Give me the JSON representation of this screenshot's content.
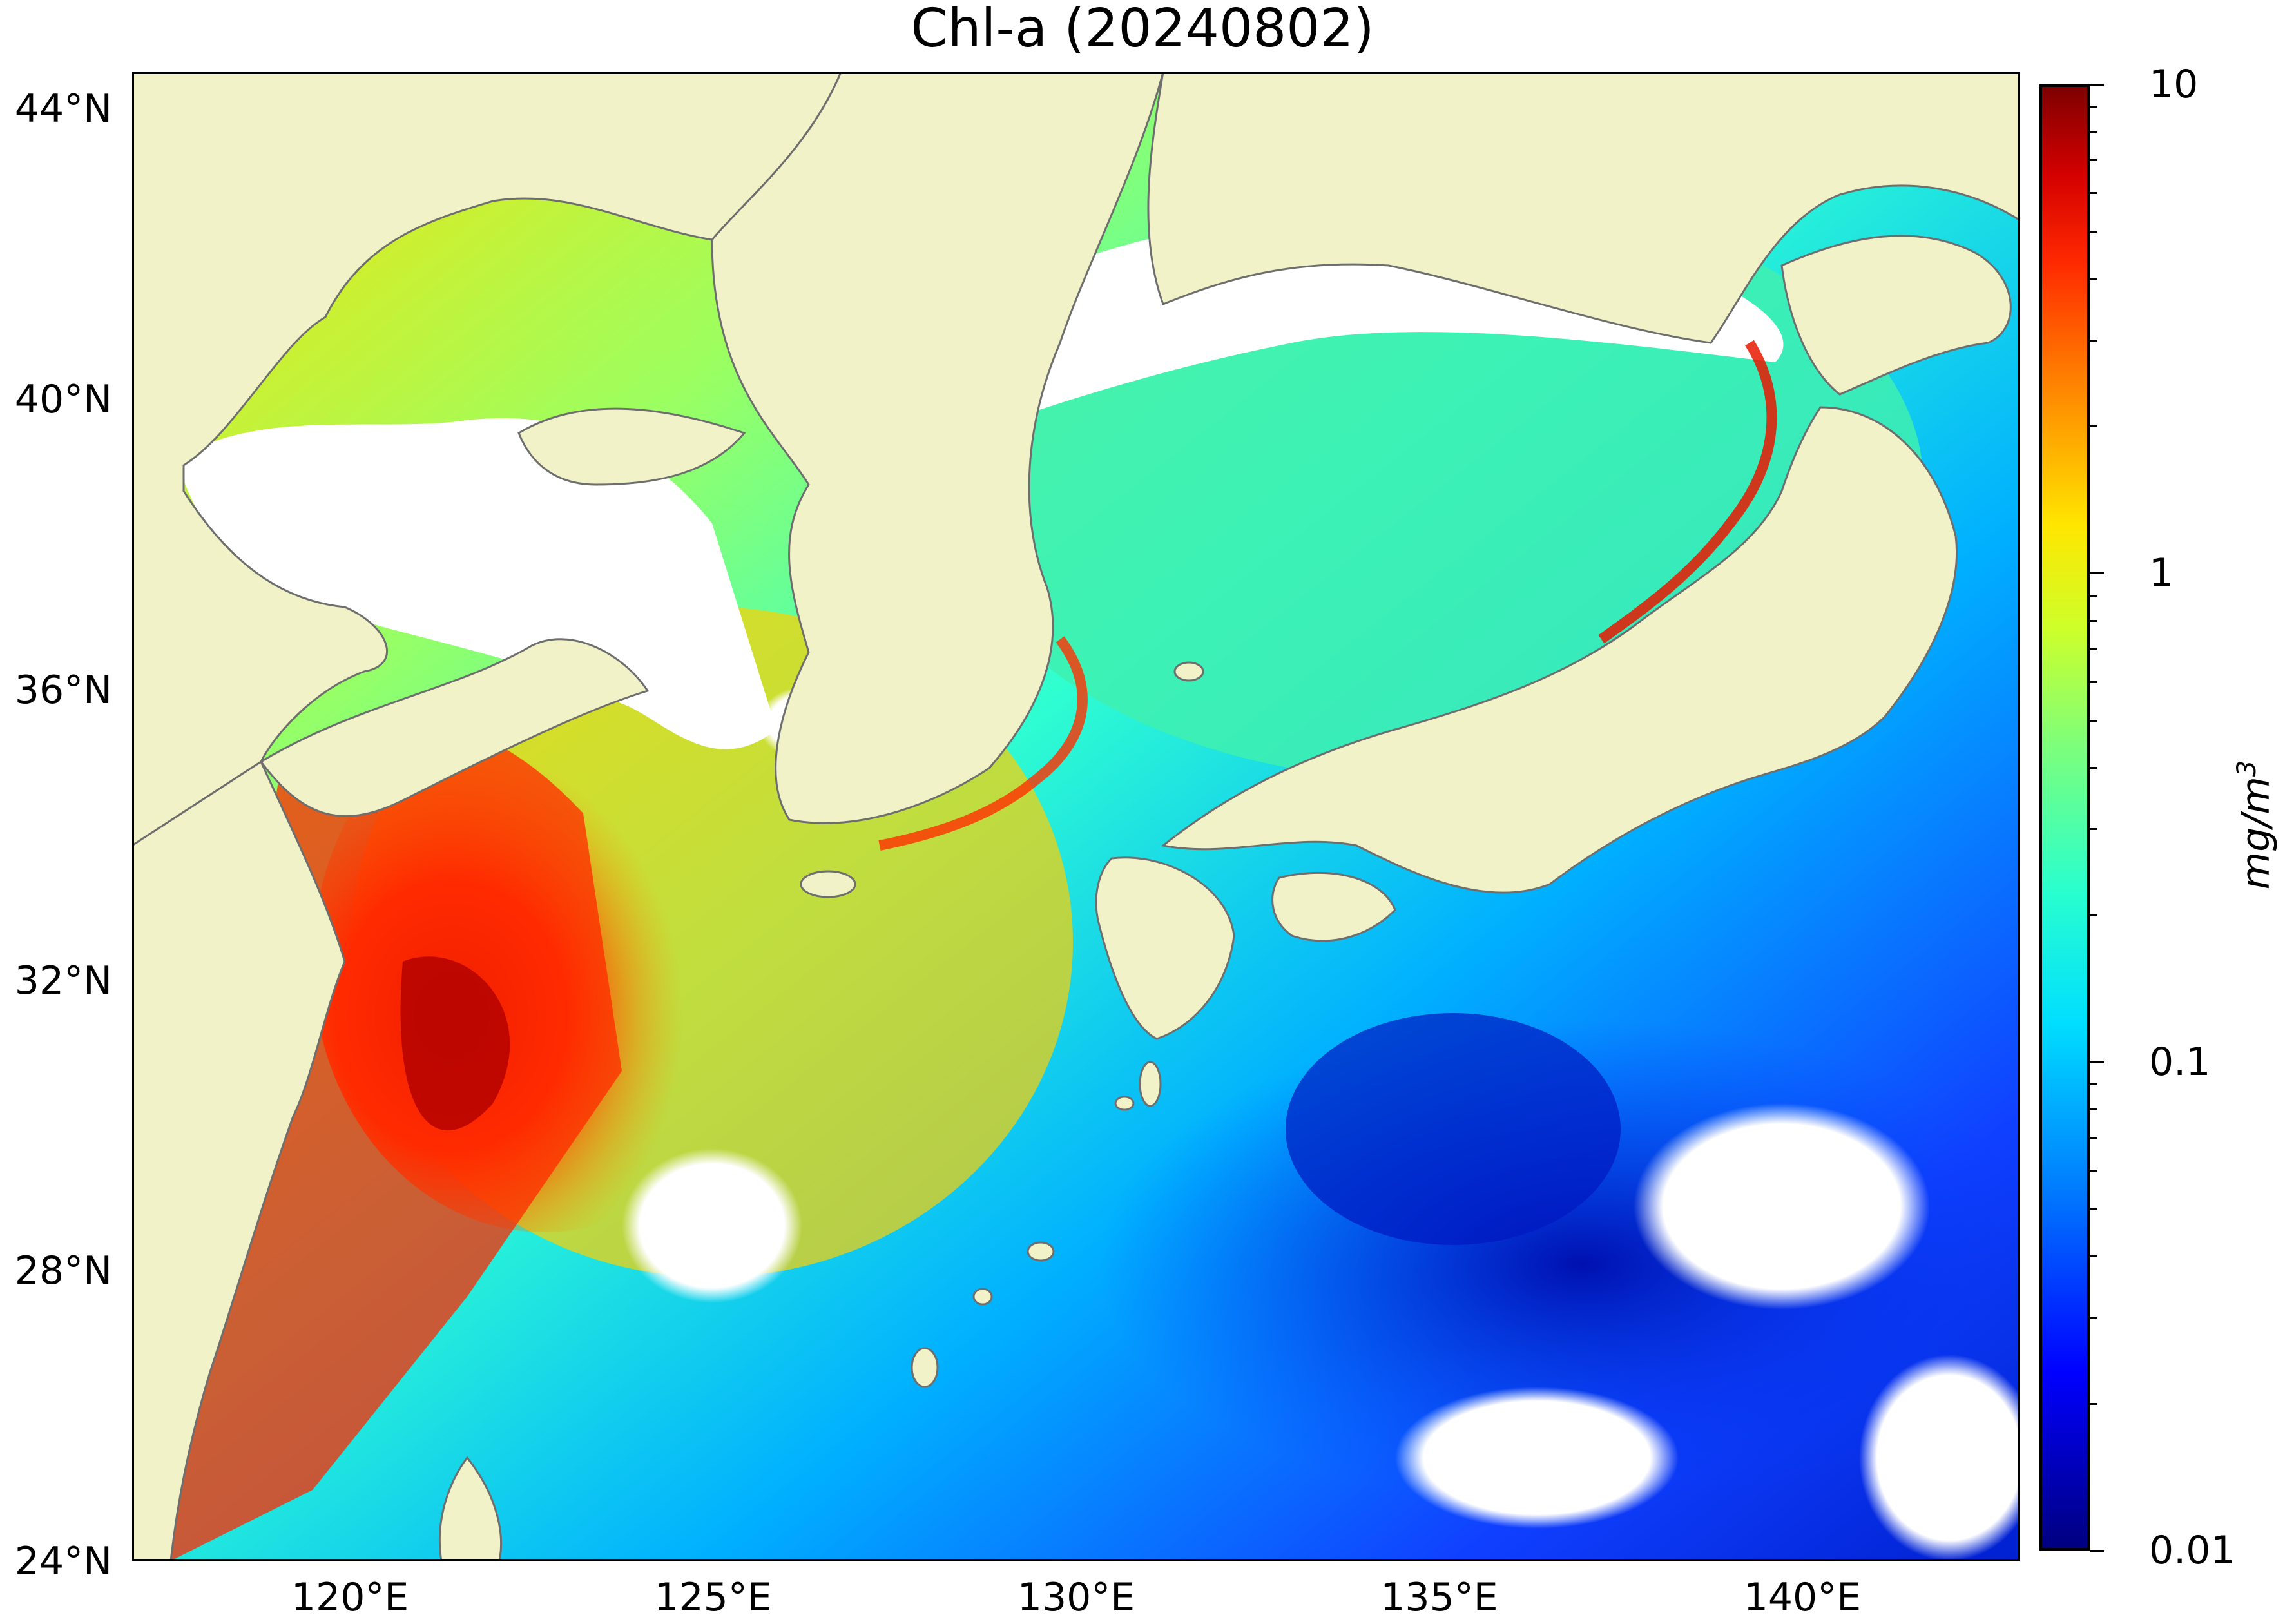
{
  "title": "Chl-a (20240802)",
  "map": {
    "extent": {
      "lon_min": 117,
      "lon_max": 143,
      "lat_min": 24,
      "lat_max": 44.5
    },
    "land_color": "#f2f2c8",
    "coast_color": "#6e6e6e",
    "cloud_color": "#ffffff",
    "lat_ticks": [
      {
        "value": 44,
        "label": "44°N"
      },
      {
        "value": 40,
        "label": "40°N"
      },
      {
        "value": 36,
        "label": "36°N"
      },
      {
        "value": 32,
        "label": "32°N"
      },
      {
        "value": 28,
        "label": "28°N"
      },
      {
        "value": 24,
        "label": "24°N"
      }
    ],
    "lon_ticks": [
      {
        "value": 120,
        "label": "120°E"
      },
      {
        "value": 125,
        "label": "125°E"
      },
      {
        "value": 130,
        "label": "130°E"
      },
      {
        "value": 135,
        "label": "135°E"
      },
      {
        "value": 140,
        "label": "140°E"
      }
    ]
  },
  "colorbar": {
    "scale": "log",
    "min": 0.01,
    "max": 10,
    "colormap": "jet",
    "unit": "mg/m",
    "unit_superscript": "3",
    "tick_labels": [
      {
        "value": 10,
        "label": "10"
      },
      {
        "value": 1,
        "label": "1"
      },
      {
        "value": 0.1,
        "label": "0.1"
      },
      {
        "value": 0.01,
        "label": "0.01"
      }
    ]
  }
}
